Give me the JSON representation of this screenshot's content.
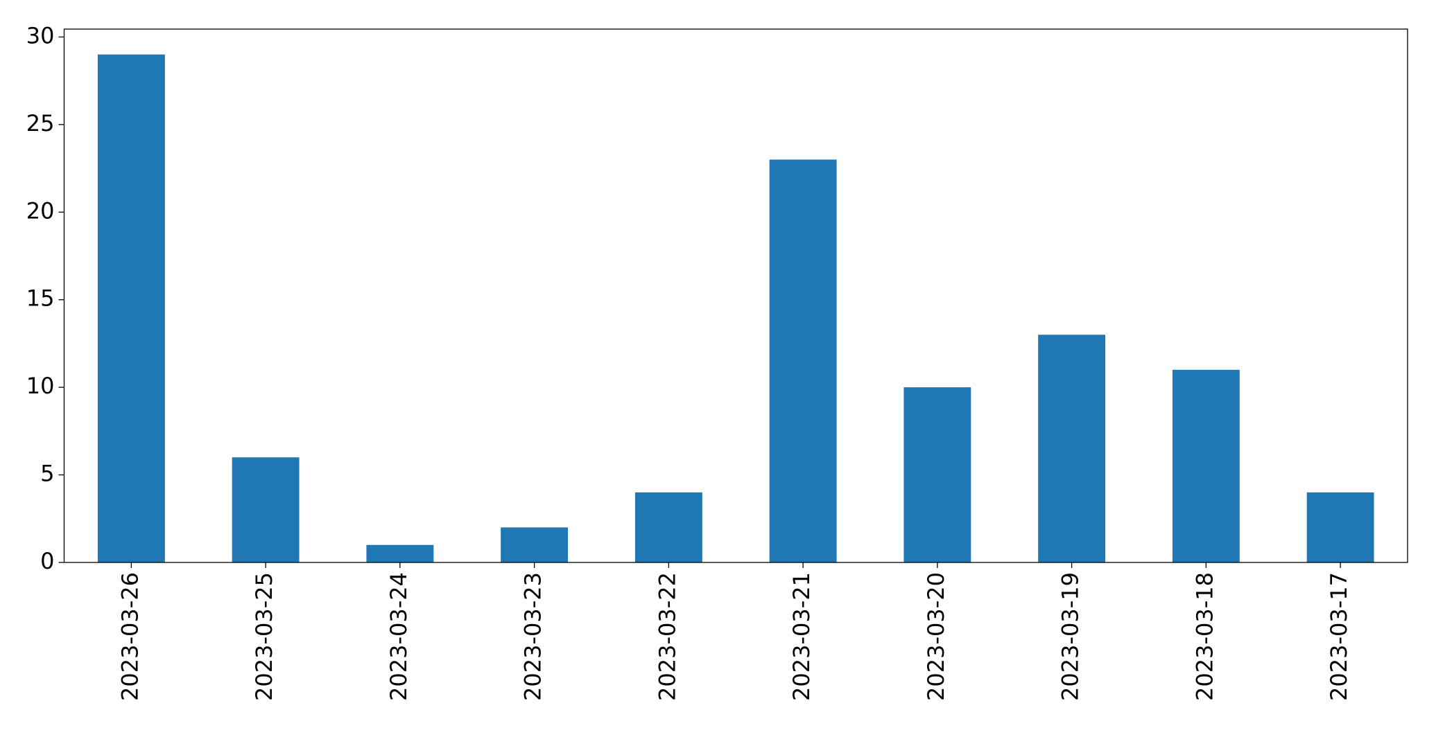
{
  "chart_data": {
    "type": "bar",
    "categories": [
      "2023-03-26",
      "2023-03-25",
      "2023-03-24",
      "2023-03-23",
      "2023-03-22",
      "2023-03-21",
      "2023-03-20",
      "2023-03-19",
      "2023-03-18",
      "2023-03-17"
    ],
    "values": [
      29,
      6,
      1,
      2,
      4,
      23,
      10,
      13,
      11,
      4
    ],
    "color": "#1f77b4",
    "ylim": [
      0,
      30.45
    ],
    "yticks": [
      0,
      5,
      10,
      15,
      20,
      25,
      30
    ],
    "grid": false
  }
}
